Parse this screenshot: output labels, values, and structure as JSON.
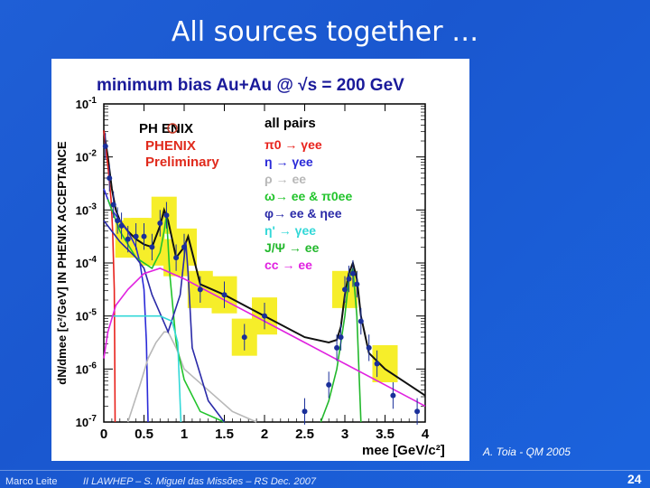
{
  "slide": {
    "title": "All sources together …",
    "credit": "A. Toia - QM 2005",
    "footer_author": "Marco Leite",
    "footer_event": "II LAWHEP – S. Miguel das Missões – RS   Dec. 2007",
    "page_number": "24"
  },
  "chart_data": {
    "type": "line",
    "title": "minimum bias Au+Au @ √s = 200 GeV",
    "ylabel": "dN/dmee [c²/GeV] IN PHENIX ACCEPTANCE",
    "xlabel": "mee [GeV/c²]",
    "xlim": [
      0,
      4
    ],
    "ylim_log10": [
      -7,
      -1
    ],
    "x_ticks": [
      "0",
      "0.5",
      "1",
      "1.5",
      "2",
      "2.5",
      "3",
      "3.5",
      "4"
    ],
    "y_ticks": [
      "10-1",
      "10-2",
      "10-3",
      "10-4",
      "10-5",
      "10-6",
      "10-7"
    ],
    "logo_text": "PH  ENIX",
    "preliminary_label": [
      "PHENIX",
      "Preliminary"
    ],
    "legend_header": "all pairs",
    "legend": [
      {
        "label": "π0 → γee",
        "color": "#e8221c"
      },
      {
        "label": "η → γee",
        "color": "#2a2ad8"
      },
      {
        "label": "ρ → ee",
        "color": "#b8b8b8"
      },
      {
        "label": "ω→ ee & π0ee",
        "color": "#22c42c"
      },
      {
        "label": "φ→ ee & ηee",
        "color": "#2a2aa8"
      },
      {
        "label": "η' → γee",
        "color": "#33d8d8"
      },
      {
        "label": "J/Ψ → ee",
        "color": "#22b82c"
      },
      {
        "label": "cc → ee",
        "color": "#e022e0"
      }
    ],
    "series": [
      {
        "name": "all pairs",
        "color": "#111111",
        "x": [
          0.0,
          0.05,
          0.1,
          0.15,
          0.2,
          0.3,
          0.4,
          0.5,
          0.6,
          0.7,
          0.75,
          0.8,
          0.9,
          1.0,
          1.05,
          1.1,
          1.2,
          1.5,
          2.0,
          2.5,
          2.8,
          2.9,
          2.95,
          3.0,
          3.05,
          3.1,
          3.15,
          3.2,
          3.3,
          3.5,
          3.8,
          4.0
        ],
        "log10y": [
          -1.5,
          -2.0,
          -2.6,
          -3.0,
          -3.2,
          -3.4,
          -3.55,
          -3.65,
          -3.7,
          -3.3,
          -3.0,
          -3.2,
          -3.9,
          -3.7,
          -3.5,
          -3.8,
          -4.4,
          -4.6,
          -5.0,
          -5.4,
          -5.5,
          -5.45,
          -5.2,
          -4.6,
          -4.2,
          -4.0,
          -4.3,
          -5.0,
          -5.7,
          -6.0,
          -6.3,
          -6.5
        ]
      },
      {
        "name": "π0 → γee",
        "color": "#e8221c",
        "x": [
          0.0,
          0.03,
          0.06,
          0.09,
          0.11,
          0.13,
          0.135,
          0.14
        ],
        "log10y": [
          -1.5,
          -1.9,
          -2.3,
          -2.8,
          -3.4,
          -4.5,
          -5.5,
          -7.0
        ]
      },
      {
        "name": "η → γee",
        "color": "#2a2ad8",
        "x": [
          0.0,
          0.1,
          0.2,
          0.3,
          0.4,
          0.45,
          0.5,
          0.53,
          0.55
        ],
        "log10y": [
          -2.6,
          -3.0,
          -3.2,
          -3.4,
          -3.7,
          -4.0,
          -4.5,
          -5.5,
          -7.0
        ]
      },
      {
        "name": "ρ → ee",
        "color": "#b8b8b8",
        "x": [
          0.3,
          0.45,
          0.55,
          0.65,
          0.75,
          0.8,
          0.9,
          1.0,
          1.3,
          1.6,
          1.9
        ],
        "log10y": [
          -7.0,
          -6.3,
          -5.8,
          -5.5,
          -5.3,
          -5.3,
          -5.6,
          -6.0,
          -6.4,
          -6.8,
          -7.0
        ]
      },
      {
        "name": "ω→ ee & π0ee",
        "color": "#22c42c",
        "x": [
          0.05,
          0.2,
          0.4,
          0.6,
          0.7,
          0.75,
          0.78,
          0.82,
          0.9,
          1.0,
          1.2,
          1.5
        ],
        "log10y": [
          -2.8,
          -3.4,
          -3.9,
          -4.1,
          -3.8,
          -3.4,
          -3.1,
          -4.2,
          -5.5,
          -6.2,
          -6.8,
          -7.0
        ]
      },
      {
        "name": "φ→ ee & ηee",
        "color": "#2a2aa8",
        "x": [
          0.0,
          0.2,
          0.4,
          0.5,
          0.6,
          0.8,
          0.95,
          1.0,
          1.02,
          1.05,
          1.1,
          1.3,
          1.5
        ],
        "log10y": [
          -3.2,
          -3.6,
          -3.9,
          -4.1,
          -4.6,
          -5.3,
          -4.6,
          -3.9,
          -3.6,
          -4.2,
          -5.6,
          -6.6,
          -7.0
        ]
      },
      {
        "name": "η' → γee",
        "color": "#33d8d8",
        "x": [
          0.1,
          0.3,
          0.5,
          0.7,
          0.85,
          0.92,
          0.96
        ],
        "log10y": [
          -5.0,
          -5.0,
          -5.0,
          -5.0,
          -5.1,
          -5.5,
          -7.0
        ]
      },
      {
        "name": "J/Ψ → ee",
        "color": "#22b82c",
        "x": [
          2.7,
          2.8,
          2.9,
          3.0,
          3.05,
          3.1,
          3.15,
          3.2
        ],
        "log10y": [
          -7.0,
          -6.6,
          -6.0,
          -5.0,
          -4.3,
          -4.1,
          -5.0,
          -7.0
        ]
      },
      {
        "name": "cc → ee",
        "color": "#e022e0",
        "x": [
          0.0,
          0.05,
          0.15,
          0.3,
          0.5,
          0.7,
          1.0,
          1.5,
          2.0,
          2.5,
          3.0,
          3.5,
          4.0
        ],
        "log10y": [
          -5.8,
          -5.3,
          -4.8,
          -4.5,
          -4.2,
          -4.1,
          -4.3,
          -4.7,
          -5.1,
          -5.5,
          -5.9,
          -6.3,
          -6.7
        ]
      }
    ],
    "data_points": {
      "x": [
        0.02,
        0.07,
        0.12,
        0.17,
        0.22,
        0.3,
        0.4,
        0.5,
        0.6,
        0.7,
        0.78,
        0.9,
        1.0,
        1.2,
        1.5,
        1.75,
        2.0,
        2.5,
        2.8,
        2.9,
        2.95,
        3.0,
        3.05,
        3.1,
        3.15,
        3.2,
        3.3,
        3.4,
        3.6,
        3.9
      ],
      "log10y": [
        -1.8,
        -2.4,
        -2.9,
        -3.2,
        -3.3,
        -3.55,
        -3.5,
        -3.5,
        -3.7,
        -3.25,
        -3.1,
        -3.9,
        -3.7,
        -4.5,
        -4.6,
        -5.4,
        -5.0,
        -6.8,
        -6.3,
        -5.6,
        -5.4,
        -4.5,
        -4.3,
        -4.2,
        -4.4,
        -5.1,
        -5.6,
        -5.9,
        -6.5,
        -6.8
      ]
    },
    "systematic_boxes_x": [
      0.3,
      0.4,
      0.5,
      0.6,
      0.75,
      0.9,
      1.0,
      1.2,
      1.5,
      1.75,
      2.0,
      3.0,
      3.5
    ]
  }
}
